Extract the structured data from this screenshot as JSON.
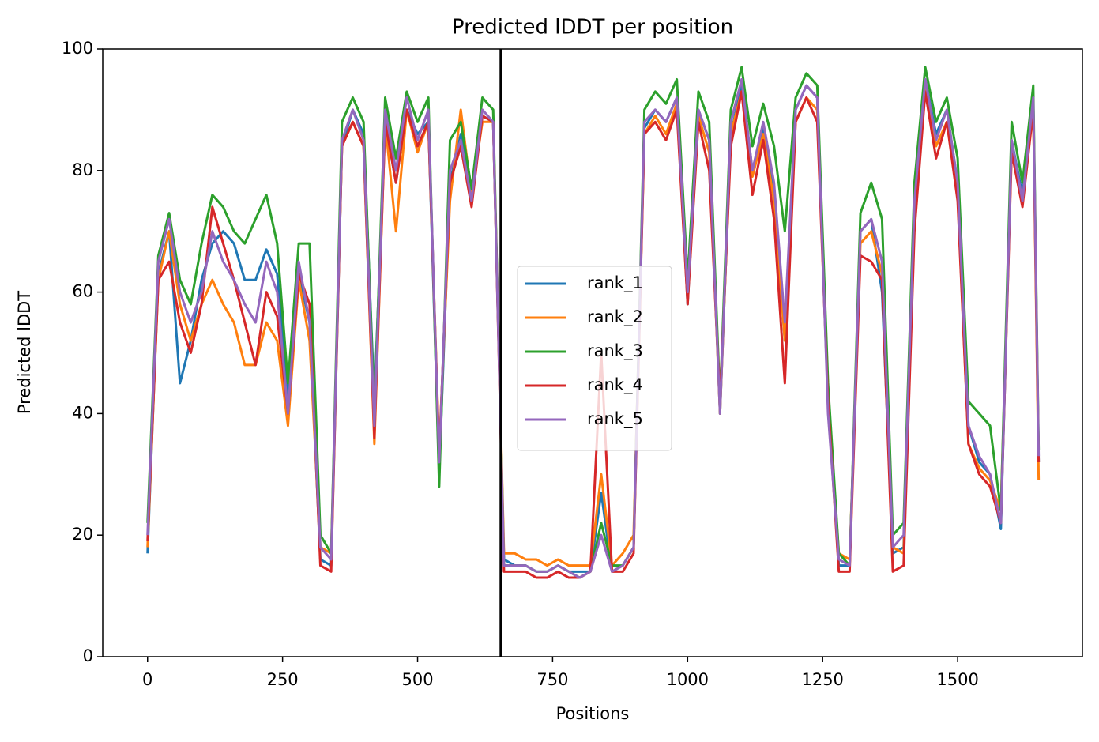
{
  "chart_data": {
    "type": "line",
    "title": "Predicted lDDT per position",
    "xlabel": "Positions",
    "ylabel": "Predicted lDDT",
    "xlim": [
      -83,
      1731
    ],
    "ylim": [
      0,
      100
    ],
    "xticks": [
      0,
      250,
      500,
      750,
      1000,
      1250,
      1500
    ],
    "yticks": [
      0,
      20,
      40,
      60,
      80,
      100
    ],
    "vline": 654,
    "legend": "center",
    "x": [
      0,
      20,
      40,
      60,
      80,
      100,
      120,
      140,
      160,
      180,
      200,
      220,
      240,
      260,
      280,
      300,
      320,
      340,
      360,
      380,
      400,
      420,
      440,
      460,
      480,
      500,
      520,
      540,
      560,
      580,
      600,
      620,
      640,
      660,
      680,
      700,
      720,
      740,
      760,
      780,
      800,
      820,
      840,
      860,
      880,
      900,
      920,
      940,
      960,
      980,
      1000,
      1020,
      1040,
      1060,
      1080,
      1100,
      1120,
      1140,
      1160,
      1180,
      1200,
      1220,
      1240,
      1260,
      1280,
      1300,
      1320,
      1340,
      1360,
      1380,
      1400,
      1420,
      1440,
      1460,
      1480,
      1500,
      1520,
      1540,
      1560,
      1580,
      1600,
      1620,
      1640,
      1650
    ],
    "series": [
      {
        "name": "rank_1",
        "color": "#1f77b4",
        "values": [
          17,
          63,
          70,
          45,
          52,
          62,
          68,
          70,
          68,
          62,
          62,
          67,
          63,
          42,
          63,
          55,
          16,
          15,
          84,
          90,
          86,
          42,
          88,
          78,
          90,
          86,
          88,
          30,
          78,
          86,
          76,
          89,
          88,
          16,
          15,
          15,
          14,
          14,
          15,
          14,
          14,
          14,
          27,
          14,
          15,
          18,
          87,
          90,
          88,
          92,
          58,
          90,
          85,
          40,
          86,
          94,
          80,
          87,
          76,
          52,
          90,
          94,
          92,
          42,
          15,
          15,
          70,
          72,
          60,
          17,
          18,
          72,
          95,
          86,
          90,
          78,
          38,
          32,
          30,
          21,
          85,
          76,
          92,
          32
        ]
      },
      {
        "name": "rank_2",
        "color": "#ff7f0e",
        "values": [
          18,
          62,
          70,
          58,
          52,
          58,
          62,
          58,
          55,
          48,
          48,
          55,
          52,
          38,
          62,
          52,
          18,
          17,
          84,
          88,
          84,
          35,
          88,
          70,
          90,
          83,
          88,
          34,
          75,
          90,
          76,
          88,
          88,
          17,
          17,
          16,
          16,
          15,
          16,
          15,
          15,
          15,
          30,
          15,
          17,
          20,
          86,
          89,
          86,
          91,
          60,
          89,
          83,
          40,
          86,
          93,
          79,
          86,
          75,
          52,
          88,
          92,
          90,
          42,
          17,
          16,
          68,
          70,
          63,
          18,
          17,
          72,
          94,
          84,
          88,
          76,
          35,
          31,
          29,
          24,
          84,
          75,
          90,
          29
        ]
      },
      {
        "name": "rank_3",
        "color": "#2ca02c",
        "values": [
          22,
          66,
          73,
          62,
          58,
          68,
          76,
          74,
          70,
          68,
          72,
          76,
          68,
          45,
          68,
          68,
          20,
          17,
          88,
          92,
          88,
          40,
          92,
          82,
          93,
          88,
          92,
          28,
          85,
          88,
          77,
          92,
          90,
          15,
          15,
          15,
          14,
          14,
          15,
          14,
          13,
          14,
          22,
          15,
          15,
          18,
          90,
          93,
          91,
          95,
          62,
          93,
          88,
          42,
          90,
          97,
          84,
          91,
          84,
          70,
          92,
          96,
          94,
          45,
          17,
          15,
          73,
          78,
          72,
          20,
          22,
          78,
          97,
          88,
          92,
          82,
          42,
          40,
          38,
          24,
          88,
          78,
          94,
          34
        ]
      },
      {
        "name": "rank_4",
        "color": "#d62728",
        "values": [
          19,
          62,
          65,
          55,
          50,
          58,
          74,
          68,
          62,
          55,
          48,
          60,
          56,
          40,
          63,
          58,
          15,
          14,
          84,
          88,
          84,
          36,
          88,
          78,
          90,
          84,
          88,
          33,
          78,
          84,
          74,
          89,
          88,
          14,
          14,
          14,
          13,
          13,
          14,
          13,
          13,
          14,
          50,
          14,
          14,
          17,
          86,
          88,
          85,
          90,
          58,
          88,
          80,
          42,
          84,
          93,
          76,
          85,
          72,
          45,
          88,
          92,
          88,
          42,
          14,
          14,
          66,
          65,
          62,
          14,
          15,
          70,
          93,
          82,
          88,
          75,
          35,
          30,
          28,
          22,
          83,
          74,
          90,
          32
        ]
      },
      {
        "name": "rank_5",
        "color": "#9467bd",
        "values": [
          20,
          65,
          72,
          60,
          55,
          60,
          70,
          65,
          62,
          58,
          55,
          65,
          60,
          40,
          65,
          55,
          18,
          16,
          85,
          90,
          85,
          38,
          90,
          80,
          92,
          85,
          90,
          32,
          80,
          85,
          75,
          90,
          88,
          15,
          15,
          15,
          14,
          14,
          15,
          14,
          13,
          14,
          20,
          14,
          15,
          18,
          88,
          90,
          88,
          92,
          60,
          90,
          85,
          40,
          88,
          95,
          80,
          88,
          78,
          55,
          90,
          94,
          92,
          40,
          16,
          15,
          70,
          72,
          65,
          18,
          20,
          75,
          95,
          85,
          90,
          78,
          38,
          33,
          30,
          22,
          85,
          75,
          92,
          33
        ]
      }
    ]
  }
}
